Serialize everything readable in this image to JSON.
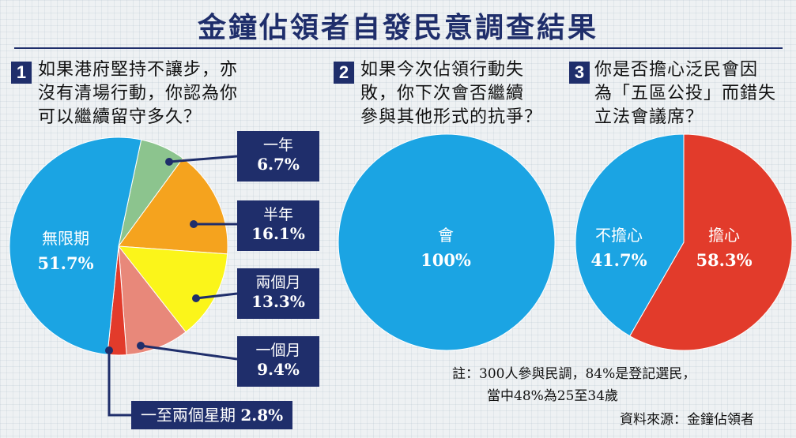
{
  "title": "金鐘佔領者自發民意調查結果",
  "colors": {
    "navy": "#1f2e6b",
    "blue": "#1ba4e3",
    "green": "#8cc48e",
    "orange": "#f5a31e",
    "yellow": "#fbf51a",
    "salmon": "#e8887a",
    "red": "#e23b2b"
  },
  "questions": [
    {
      "num": "1",
      "lines": [
        "如果港府堅持不讓步，亦",
        "沒有清場行動，你認為你",
        "可以繼續留守多久？"
      ]
    },
    {
      "num": "2",
      "lines": [
        "如果今次佔領行動失",
        "敗，你下次會否繼續",
        "參與其他形式的抗爭？"
      ]
    },
    {
      "num": "3",
      "lines": [
        "你是否擔心泛民會因",
        "為「五區公投」而錯失",
        "立法會議席？"
      ]
    }
  ],
  "chart_data": [
    {
      "type": "pie",
      "title": "如果港府堅持不讓步，亦沒有清場行動，你認為你可以繼續留守多久？",
      "slices": [
        {
          "label": "無限期",
          "value": 51.7,
          "pct": "51.7%",
          "color": "#1ba4e3"
        },
        {
          "label": "一年",
          "value": 6.7,
          "pct": "6.7%",
          "color": "#8cc48e"
        },
        {
          "label": "半年",
          "value": 16.1,
          "pct": "16.1%",
          "color": "#f5a31e"
        },
        {
          "label": "兩個月",
          "value": 13.3,
          "pct": "13.3%",
          "color": "#fbf51a"
        },
        {
          "label": "一個月",
          "value": 9.4,
          "pct": "9.4%",
          "color": "#e8887a"
        },
        {
          "label": "一至兩個星期",
          "value": 2.8,
          "pct": "2.8%",
          "color": "#e23b2b"
        }
      ]
    },
    {
      "type": "pie",
      "title": "如果今次佔領行動失敗，你下次會否繼續參與其他形式的抗爭？",
      "slices": [
        {
          "label": "會",
          "value": 100,
          "pct": "100%",
          "color": "#1ba4e3"
        }
      ]
    },
    {
      "type": "pie",
      "title": "你是否擔心泛民會因為「五區公投」而錯失立法會議席？",
      "slices": [
        {
          "label": "不擔心",
          "value": 41.7,
          "pct": "41.7%",
          "color": "#1ba4e3"
        },
        {
          "label": "擔心",
          "value": 58.3,
          "pct": "58.3%",
          "color": "#e23b2b"
        }
      ]
    }
  ],
  "notes": {
    "line1": "註：300人參與民調，84%是登記選民，",
    "line2": "當中48%為25至34歲",
    "source": "資料來源：金鐘佔領者"
  }
}
